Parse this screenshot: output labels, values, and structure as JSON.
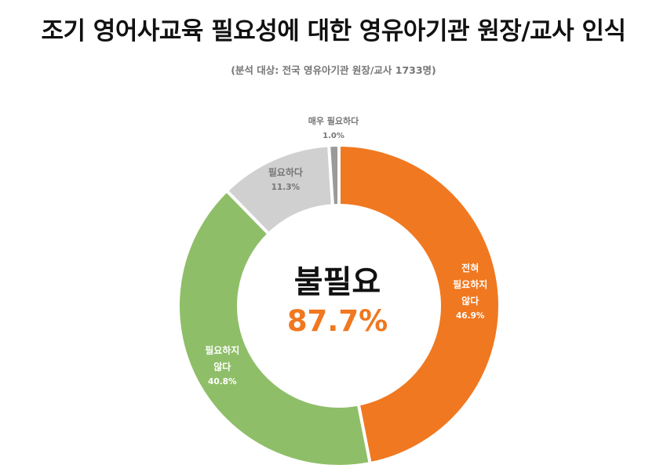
{
  "header": {
    "title": "조기 영어사교육 필요성에 대한 영유아기관 원장/교사 인식",
    "subtitle": "(분석 대상: 전국 영유아기관 원장/교사 1733명)"
  },
  "center": {
    "label": "불필요",
    "value": "87.7%",
    "value_color": "#F07820"
  },
  "chart_data": {
    "type": "pie",
    "variant": "donut",
    "title": "조기 영어사교육 필요성에 대한 영유아기관 원장/교사 인식",
    "subtitle": "(분석 대상: 전국 영유아기관 원장/교사 1733명)",
    "slices": [
      {
        "label": "전혀 필요하지 않다",
        "label_lines": [
          "전혀",
          "필요하지",
          "않다"
        ],
        "value": 46.9,
        "value_label": "46.9%",
        "color": "#F07820",
        "label_color": "#FFFFFF"
      },
      {
        "label": "필요하지 않다",
        "label_lines": [
          "필요하지",
          "않다"
        ],
        "value": 40.8,
        "value_label": "40.8%",
        "color": "#8FBE68",
        "label_color": "#FFFFFF"
      },
      {
        "label": "필요하다",
        "label_lines": [
          "필요하다"
        ],
        "value": 11.3,
        "value_label": "11.3%",
        "color": "#D0D0D0",
        "label_color": "#767676"
      },
      {
        "label": "매우 필요하다",
        "label_lines": [
          "매우 필요하다"
        ],
        "value": 1.0,
        "value_label": "1.0%",
        "color": "#9A9A9A",
        "label_color": "#767676"
      }
    ],
    "start_angle_deg": 0,
    "direction": "clockwise",
    "legend": "none"
  }
}
